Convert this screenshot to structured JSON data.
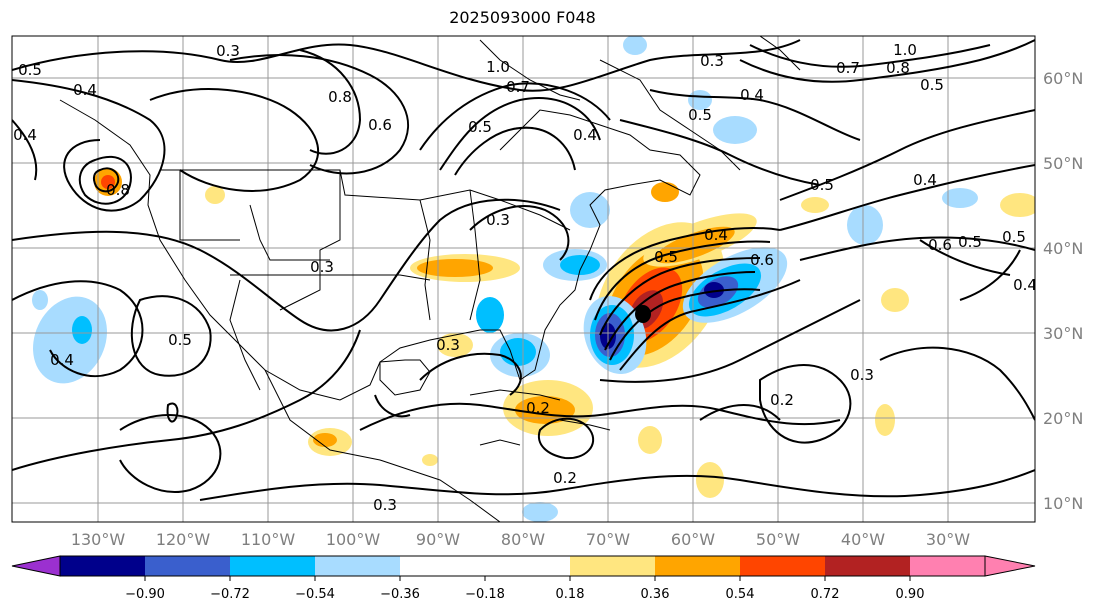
{
  "title": "2025093000 F048",
  "axes": {
    "lon_labels": [
      "130°W",
      "120°W",
      "110°W",
      "100°W",
      "90°W",
      "80°W",
      "70°W",
      "60°W",
      "50°W",
      "40°W",
      "30°W"
    ],
    "lat_labels": [
      "60°N",
      "50°N",
      "40°N",
      "30°N",
      "20°N",
      "10°N"
    ]
  },
  "colorbar": {
    "ticks": [
      "−0.90",
      "−0.72",
      "−0.54",
      "−0.36",
      "−0.18",
      "0.18",
      "0.36",
      "0.54",
      "0.72",
      "0.90"
    ],
    "colors": [
      "#9b30d0",
      "#00008b",
      "#3a5fcd",
      "#00bfff",
      "#a8dcff",
      "#ffffff",
      "#ffe680",
      "#ffa500",
      "#ff4500",
      "#b22222",
      "#ff80b0"
    ]
  },
  "contour_labels": [
    "0.5",
    "0.4",
    "0.4",
    "0.3",
    "0.8",
    "0.8",
    "1.0",
    "0.7",
    "0.6",
    "0.5",
    "0.4",
    "0.3",
    "0.5",
    "0.3",
    "0.7",
    "0.8",
    "1.0",
    "0.5",
    "0.4",
    "0.5",
    "0.4",
    "0.6",
    "0.5",
    "0.4",
    "0.5",
    "0.3",
    "0.5",
    "0.4",
    "0.3",
    "0.2",
    "0.2",
    "0.3",
    "0.2",
    "0.3",
    "0.5",
    "0.6",
    "0.4"
  ]
}
